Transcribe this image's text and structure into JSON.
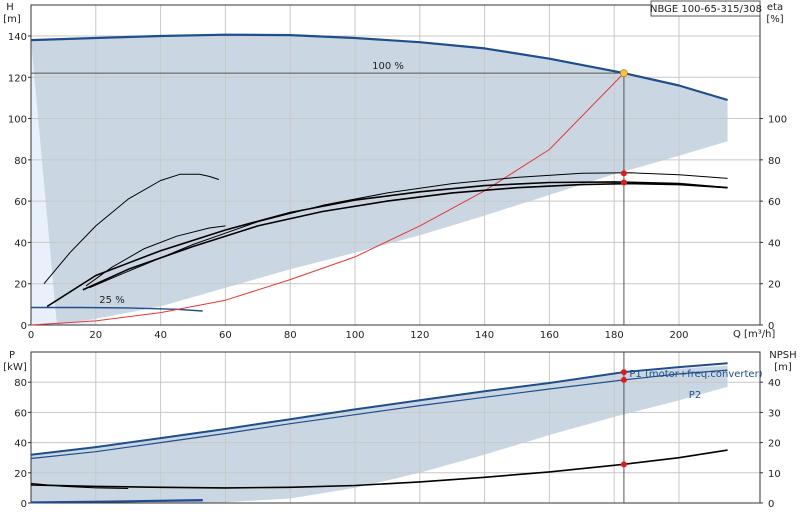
{
  "chart_data": [
    {
      "type": "line",
      "title": "NBGE 100-65-315/308",
      "x_axis": {
        "label": "Q [m³/h]",
        "ticks": [
          0,
          20,
          40,
          60,
          80,
          100,
          120,
          140,
          160,
          180,
          200
        ],
        "range": [
          0,
          225
        ]
      },
      "y_axis_left": {
        "label_top": "H",
        "label_unit": "[m]",
        "ticks": [
          0,
          20,
          40,
          60,
          80,
          100,
          120,
          140
        ],
        "range": [
          0,
          155
        ]
      },
      "y_axis_right": {
        "label_top": "eta",
        "label_unit": "[%]",
        "ticks": [
          0,
          20,
          40,
          60,
          80,
          100
        ],
        "range": [
          0,
          155
        ]
      },
      "annotations": {
        "speed_max": "100 %",
        "speed_min": "25 %"
      },
      "envelope": {
        "upper": [
          [
            0,
            138
          ],
          [
            20,
            139
          ],
          [
            40,
            140
          ],
          [
            60,
            140.6
          ],
          [
            80,
            140.4
          ],
          [
            100,
            139
          ],
          [
            120,
            137
          ],
          [
            140,
            134
          ],
          [
            160,
            129
          ],
          [
            183,
            122
          ],
          [
            200,
            116
          ],
          [
            215,
            109
          ]
        ],
        "lower": [
          [
            215,
            89
          ],
          [
            200,
            82
          ],
          [
            180,
            73
          ],
          [
            160,
            63
          ],
          [
            140,
            53
          ],
          [
            120,
            43.5
          ],
          [
            100,
            35
          ],
          [
            80,
            27
          ],
          [
            60,
            18
          ],
          [
            40,
            9
          ],
          [
            20,
            3
          ],
          [
            8,
            0
          ]
        ]
      },
      "light_region": [
        [
          0,
          138
        ],
        [
          20,
          139
        ],
        [
          20,
          0
        ],
        [
          0,
          0
        ]
      ],
      "series": [
        {
          "id": "head-100",
          "color": "#1f4e8c",
          "width": 2.2,
          "points": [
            [
              0,
              138
            ],
            [
              20,
              139
            ],
            [
              40,
              140
            ],
            [
              60,
              140.6
            ],
            [
              80,
              140.4
            ],
            [
              100,
              139
            ],
            [
              120,
              137
            ],
            [
              140,
              134
            ],
            [
              160,
              129
            ],
            [
              183,
              122
            ],
            [
              200,
              116
            ],
            [
              215,
              109
            ]
          ]
        },
        {
          "id": "head-25",
          "color": "#1f4e8c",
          "width": 1.4,
          "points": [
            [
              0,
              8.5
            ],
            [
              15,
              8.5
            ],
            [
              30,
              8.3
            ],
            [
              45,
              7.6
            ],
            [
              53,
              6.8
            ]
          ]
        },
        {
          "id": "system-curve",
          "color": "#e53935",
          "width": 1,
          "points": [
            [
              0,
              0
            ],
            [
              20,
              2
            ],
            [
              40,
              6
            ],
            [
              60,
              12
            ],
            [
              80,
              22
            ],
            [
              100,
              33
            ],
            [
              120,
              48
            ],
            [
              140,
              65
            ],
            [
              160,
              85
            ],
            [
              183,
              122
            ]
          ]
        },
        {
          "id": "eta-1",
          "color": "#000000",
          "width": 1.6,
          "points": [
            [
              5,
              9
            ],
            [
              20,
              24
            ],
            [
              40,
              36
            ],
            [
              60,
              46
            ],
            [
              80,
              54.5
            ],
            [
              100,
              60.5
            ],
            [
              120,
              64.5
            ],
            [
              140,
              67.5
            ],
            [
              160,
              69
            ],
            [
              180,
              69.3
            ],
            [
              200,
              68.5
            ],
            [
              215,
              66.5
            ]
          ]
        },
        {
          "id": "eta-2",
          "color": "#000000",
          "width": 1.6,
          "points": [
            [
              16,
              17
            ],
            [
              30,
              27
            ],
            [
              50,
              38
            ],
            [
              70,
              48
            ],
            [
              90,
              55
            ],
            [
              110,
              60
            ],
            [
              130,
              64
            ],
            [
              150,
              66.5
            ],
            [
              170,
              68
            ],
            [
              185,
              68.5
            ],
            [
              200,
              68
            ],
            [
              215,
              66.5
            ]
          ]
        },
        {
          "id": "eta-3",
          "color": "#000000",
          "width": 1,
          "points": [
            [
              18,
              18
            ],
            [
              30,
              26
            ],
            [
              50,
              39
            ],
            [
              70,
              50
            ],
            [
              90,
              58
            ],
            [
              110,
              64
            ],
            [
              130,
              68.5
            ],
            [
              150,
              71.5
            ],
            [
              170,
              73.5
            ],
            [
              185,
              73.7
            ],
            [
              200,
              72.8
            ],
            [
              215,
              71
            ]
          ]
        },
        {
          "id": "eta-4",
          "color": "#000000",
          "width": 1,
          "points": [
            [
              17,
              19
            ],
            [
              25,
              28
            ],
            [
              35,
              37
            ],
            [
              45,
              43
            ],
            [
              55,
              47
            ],
            [
              60,
              48
            ]
          ]
        },
        {
          "id": "eta-5",
          "color": "#000000",
          "width": 1,
          "points": [
            [
              4,
              20
            ],
            [
              12,
              35
            ],
            [
              20,
              48
            ],
            [
              30,
              61
            ],
            [
              40,
              70
            ],
            [
              46,
              73
            ],
            [
              52,
              73
            ],
            [
              55,
              72
            ],
            [
              58,
              70.5
            ]
          ]
        }
      ],
      "operating_point": {
        "q": 183,
        "h": 122
      },
      "duty_line_h": 122,
      "markers_red": [
        [
          183,
          122
        ],
        [
          183,
          73.5
        ],
        [
          183,
          69
        ]
      ]
    },
    {
      "type": "line",
      "x_axis": {
        "range": [
          0,
          225
        ]
      },
      "y_axis_left": {
        "label_top": "P",
        "label_unit": "[kW]",
        "ticks": [
          0,
          20,
          40,
          60,
          80
        ],
        "range": [
          0,
          100
        ]
      },
      "y_axis_right": {
        "label_top": "NPSH",
        "label_unit": "[m]",
        "ticks": [
          0,
          10,
          20,
          30,
          40
        ],
        "range": [
          0,
          50
        ]
      },
      "envelope": {
        "upper": [
          [
            0,
            32
          ],
          [
            20,
            37
          ],
          [
            40,
            43
          ],
          [
            60,
            49
          ],
          [
            80,
            55.5
          ],
          [
            100,
            62
          ],
          [
            120,
            68
          ],
          [
            140,
            74
          ],
          [
            160,
            79.5
          ],
          [
            180,
            85
          ],
          [
            200,
            89
          ],
          [
            215,
            91
          ]
        ],
        "lower": [
          [
            215,
            77
          ],
          [
            200,
            68
          ],
          [
            180,
            57
          ],
          [
            160,
            45
          ],
          [
            140,
            32
          ],
          [
            120,
            20
          ],
          [
            100,
            10
          ],
          [
            80,
            3
          ],
          [
            60,
            0.5
          ],
          [
            40,
            0
          ],
          [
            0,
            0
          ]
        ]
      },
      "series": [
        {
          "id": "p1-100",
          "name": "P1 (motor+freq.converter)",
          "color": "#1f4e8c",
          "width": 2,
          "points": [
            [
              0,
              32
            ],
            [
              20,
              37
            ],
            [
              40,
              43
            ],
            [
              60,
              49
            ],
            [
              80,
              55.5
            ],
            [
              100,
              62
            ],
            [
              120,
              68
            ],
            [
              140,
              74
            ],
            [
              160,
              79.5
            ],
            [
              183,
              86.7
            ],
            [
              200,
              90
            ],
            [
              215,
              92.5
            ]
          ]
        },
        {
          "id": "p2-100",
          "name": "P2",
          "color": "#1f4e8c",
          "width": 1.2,
          "points": [
            [
              0,
              29.5
            ],
            [
              20,
              34
            ],
            [
              40,
              40
            ],
            [
              60,
              46
            ],
            [
              80,
              52.5
            ],
            [
              100,
              58.5
            ],
            [
              120,
              64.5
            ],
            [
              140,
              70
            ],
            [
              160,
              75.5
            ],
            [
              183,
              81.5
            ],
            [
              200,
              85.5
            ],
            [
              215,
              88
            ]
          ]
        },
        {
          "id": "p-25",
          "color": "#1f4e8c",
          "width": 2,
          "points": [
            [
              0,
              0.4
            ],
            [
              25,
              1
            ],
            [
              53,
              2
            ]
          ]
        },
        {
          "id": "p-25-b",
          "color": "#1f4e8c",
          "width": 1,
          "points": [
            [
              0,
              0.2
            ],
            [
              25,
              0.7
            ],
            [
              53,
              1.4
            ]
          ]
        },
        {
          "id": "npsh",
          "color": "#000000",
          "width": 1.6,
          "axis": "right",
          "points": [
            [
              0,
              6
            ],
            [
              20,
              5.5
            ],
            [
              40,
              5.2
            ],
            [
              60,
              5
            ],
            [
              80,
              5.2
            ],
            [
              100,
              5.8
            ],
            [
              120,
              7
            ],
            [
              140,
              8.5
            ],
            [
              160,
              10.3
            ],
            [
              183,
              12.8
            ],
            [
              200,
              15
            ],
            [
              215,
              17.5
            ]
          ]
        },
        {
          "id": "npsh-low",
          "color": "#000000",
          "width": 1,
          "axis": "right",
          "points": [
            [
              0,
              6.5
            ],
            [
              10,
              5.5
            ],
            [
              20,
              5
            ],
            [
              30,
              4.8
            ]
          ]
        }
      ],
      "markers_red": [
        [
          183,
          86.7,
          "left"
        ],
        [
          183,
          81.5,
          "left"
        ],
        [
          183,
          12.8,
          "right"
        ]
      ]
    }
  ]
}
